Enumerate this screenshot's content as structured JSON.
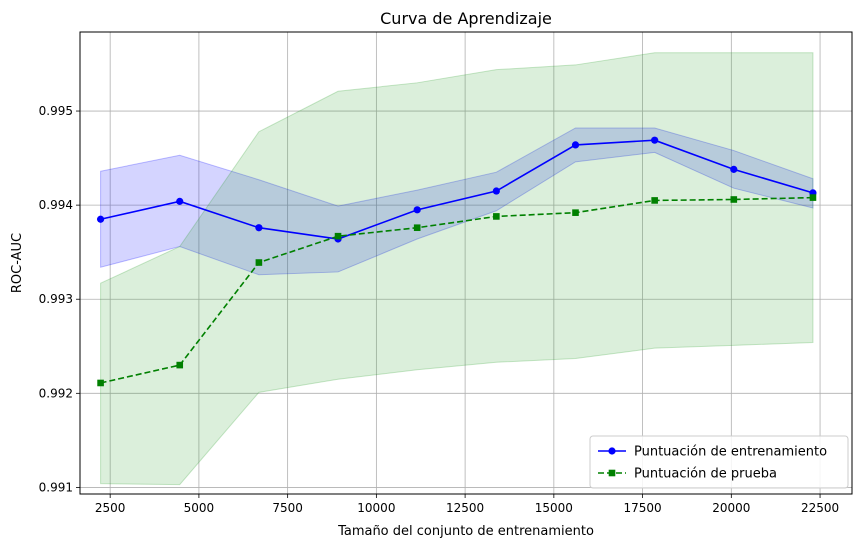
{
  "chart_data": {
    "type": "line",
    "title": "Curva de Aprendizaje",
    "xlabel": "Tamaño del conjunto de entrenamiento",
    "ylabel": "ROC-AUC",
    "xlim": [
      1650,
      23400
    ],
    "ylim": [
      0.99093,
      0.99584
    ],
    "xticks": [
      2500,
      5000,
      7500,
      10000,
      12500,
      15000,
      17500,
      20000,
      22500
    ],
    "yticks": [
      0.991,
      0.992,
      0.993,
      0.994,
      0.995
    ],
    "grid": true,
    "legend_position": "bottom-right",
    "x": [
      2230,
      4460,
      6690,
      8920,
      11150,
      13380,
      15610,
      17840,
      20070,
      22300
    ],
    "series": [
      {
        "name": "Puntuación de entrenamiento",
        "color": "#0000ff",
        "band_color": "#0000ff",
        "linestyle": "solid",
        "marker": "circle",
        "values": [
          0.99385,
          0.99404,
          0.99376,
          0.99364,
          0.99395,
          0.99415,
          0.99464,
          0.99469,
          0.99438,
          0.99413
        ],
        "lower": [
          0.99334,
          0.99356,
          0.99326,
          0.99329,
          0.99364,
          0.99394,
          0.99446,
          0.99456,
          0.99418,
          0.99397
        ],
        "upper": [
          0.99436,
          0.99453,
          0.99427,
          0.99399,
          0.99416,
          0.99435,
          0.99482,
          0.99482,
          0.99458,
          0.99428
        ]
      },
      {
        "name": "Puntuación de prueba",
        "color": "#008000",
        "band_color": "#2ca02c",
        "linestyle": "dashed",
        "marker": "square",
        "values": [
          0.99211,
          0.9923,
          0.99339,
          0.99367,
          0.99376,
          0.99388,
          0.99392,
          0.99405,
          0.99406,
          0.99408
        ],
        "lower": [
          0.99104,
          0.99103,
          0.99201,
          0.99215,
          0.99225,
          0.99233,
          0.99237,
          0.99248,
          0.99251,
          0.99254
        ],
        "upper": [
          0.99317,
          0.99356,
          0.99478,
          0.99521,
          0.9953,
          0.99544,
          0.99549,
          0.99562,
          0.99562,
          0.99562
        ]
      }
    ]
  }
}
